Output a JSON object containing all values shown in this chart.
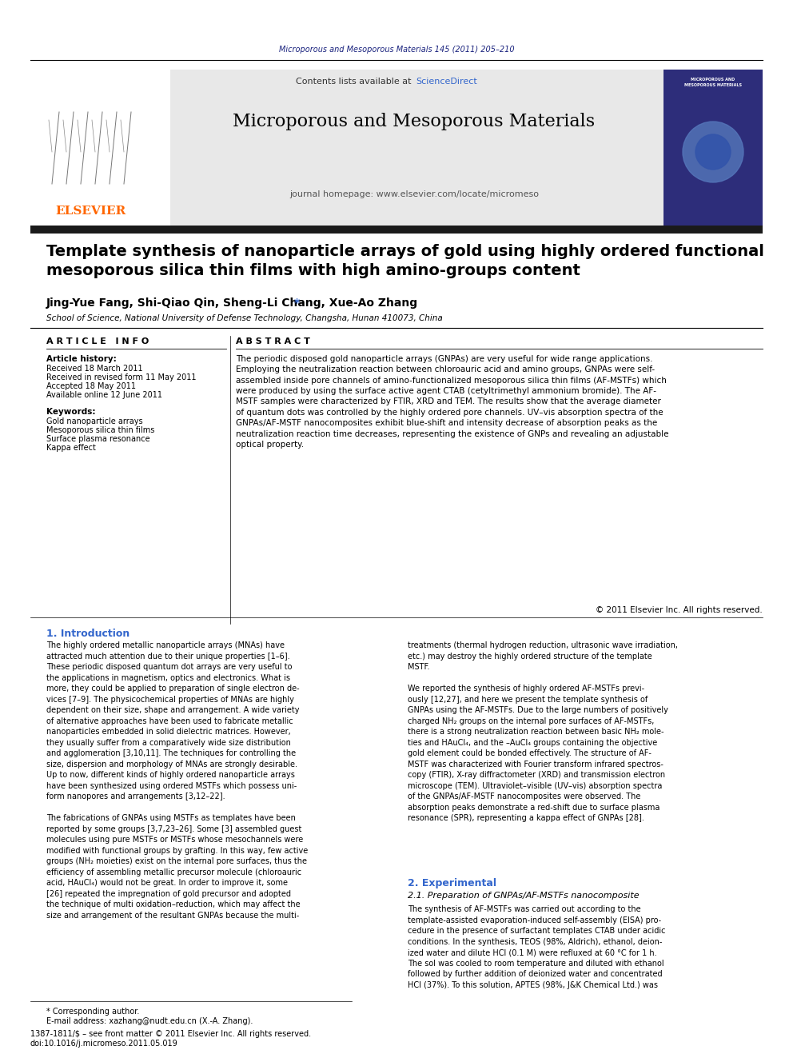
{
  "page_bg": "#ffffff",
  "top_journal_ref": "Microporous and Mesoporous Materials 145 (2011) 205–210",
  "top_journal_ref_color": "#1a237e",
  "header_bg": "#e8e8e8",
  "header_title": "Microporous and Mesoporous Materials",
  "header_subtitle": "journal homepage: www.elsevier.com/locate/micromeso",
  "header_contents_text": "Contents lists available at ",
  "header_sciencedirect": "ScienceDirect",
  "elsevier_color": "#ff6600",
  "sciencedirect_color": "#3366cc",
  "article_title": "Template synthesis of nanoparticle arrays of gold using highly ordered functional\nmesoporous silica thin films with high amino-groups content",
  "authors": "Jing-Yue Fang, Shi-Qiao Qin, Sheng-Li Chang, Xue-Ao Zhang",
  "authors_star": "*",
  "affiliation": "School of Science, National University of Defense Technology, Changsha, Hunan 410073, China",
  "section_article_info": "A R T I C L E   I N F O",
  "section_abstract": "A B S T R A C T",
  "article_history_label": "Article history:",
  "received_label": "Received 18 March 2011",
  "received_revised_label": "Received in revised form 11 May 2011",
  "accepted_label": "Accepted 18 May 2011",
  "available_label": "Available online 12 June 2011",
  "keywords_label": "Keywords:",
  "keyword1": "Gold nanoparticle arrays",
  "keyword2": "Mesoporous silica thin films",
  "keyword3": "Surface plasma resonance",
  "keyword4": "Kappa effect",
  "abstract_text": "The periodic disposed gold nanoparticle arrays (GNPAs) are very useful for wide range applications.\nEmploying the neutralization reaction between chloroauric acid and amino groups, GNPAs were self-\nassembled inside pore channels of amino-functionalized mesoporous silica thin films (AF-MSTFs) which\nwere produced by using the surface active agent CTAB (cetyltrimethyl ammonium bromide). The AF-\nMSTF samples were characterized by FTIR, XRD and TEM. The results show that the average diameter\nof quantum dots was controlled by the highly ordered pore channels. UV–vis absorption spectra of the\nGNPAs/AF-MSTF nanocomposites exhibit blue-shift and intensity decrease of absorption peaks as the\nneutralization reaction time decreases, representing the existence of GNPs and revealing an adjustable\noptical property.",
  "copyright_text": "© 2011 Elsevier Inc. All rights reserved.",
  "intro_title": "1. Introduction",
  "intro_col1_para1": "The highly ordered metallic nanoparticle arrays (MNAs) have\nattracted much attention due to their unique properties [1–6].\nThese periodic disposed quantum dot arrays are very useful to\nthe applications in magnetism, optics and electronics. What is\nmore, they could be applied to preparation of single electron de-\nvices [7–9]. The physicochemical properties of MNAs are highly\ndependent on their size, shape and arrangement. A wide variety\nof alternative approaches have been used to fabricate metallic\nnanoparticles embedded in solid dielectric matrices. However,\nthey usually suffer from a comparatively wide size distribution\nand agglomeration [3,10,11]. The techniques for controlling the\nsize, dispersion and morphology of MNAs are strongly desirable.\nUp to now, different kinds of highly ordered nanoparticle arrays\nhave been synthesized using ordered MSTFs which possess uni-\nform nanopores and arrangements [3,12–22].",
  "intro_col1_para2": "The fabrications of GNPAs using MSTFs as templates have been\nreported by some groups [3,7,23–26]. Some [3] assembled guest\nmolecules using pure MSTFs or MSTFs whose mesochannels were\nmodified with functional groups by grafting. In this way, few active\ngroups (NH₂ moieties) exist on the internal pore surfaces, thus the\nefficiency of assembling metallic precursor molecule (chloroauric\nacid, HAuCl₄) would not be great. In order to improve it, some\n[26] repeated the impregnation of gold precursor and adopted\nthe technique of multi oxidation–reduction, which may affect the\nsize and arrangement of the resultant GNPAs because the multi-",
  "intro_col2_para1": "treatments (thermal hydrogen reduction, ultrasonic wave irradiation,\netc.) may destroy the highly ordered structure of the template\nMSTF.",
  "intro_col2_para2": "We reported the synthesis of highly ordered AF-MSTFs previ-\nously [12,27], and here we present the template synthesis of\nGNPAs using the AF-MSTFs. Due to the large numbers of positively\ncharged NH₂ groups on the internal pore surfaces of AF-MSTFs,\nthere is a strong neutralization reaction between basic NH₂ mole-\nties and HAuCl₄, and the –AuCl₄ groups containing the objective\ngold element could be bonded effectively. The structure of AF-\nMSTF was characterized with Fourier transform infrared spectros-\ncopy (FTIR), X-ray diffractometer (XRD) and transmission electron\nmicroscope (TEM). Ultraviolet–visible (UV–vis) absorption spectra\nof the GNPAs/AF-MSTF nanocomposites were observed. The\nabsorption peaks demonstrate a red-shift due to surface plasma\nresonance (SPR), representing a kappa effect of GNPAs [28].",
  "experimental_title": "2. Experimental",
  "experimental_subtitle": "2.1. Preparation of GNPAs/AF-MSTFs nanocomposite",
  "experimental_text": "The synthesis of AF-MSTFs was carried out according to the\ntemplate-assisted evaporation-induced self-assembly (EISA) pro-\ncedure in the presence of surfactant templates CTAB under acidic\nconditions. In the synthesis, TEOS (98%, Aldrich), ethanol, deion-\nized water and dilute HCl (0.1 M) were refluxed at 60 °C for 1 h.\nThe sol was cooled to room temperature and diluted with ethanol\nfollowed by further addition of deionized water and concentrated\nHCl (37%). To this solution, APTES (98%, J&K Chemical Ltd.) was",
  "footnote_star": "* Corresponding author.",
  "footnote_email": "E-mail address: xazhang@nudt.edu.cn (X.-A. Zhang).",
  "footnote_issn": "1387-1811/$ – see front matter © 2011 Elsevier Inc. All rights reserved.",
  "footnote_doi": "doi:10.1016/j.micromeso.2011.05.019",
  "text_color": "#000000",
  "title_color": "#000000",
  "dark_bar_color": "#1a1a1a"
}
